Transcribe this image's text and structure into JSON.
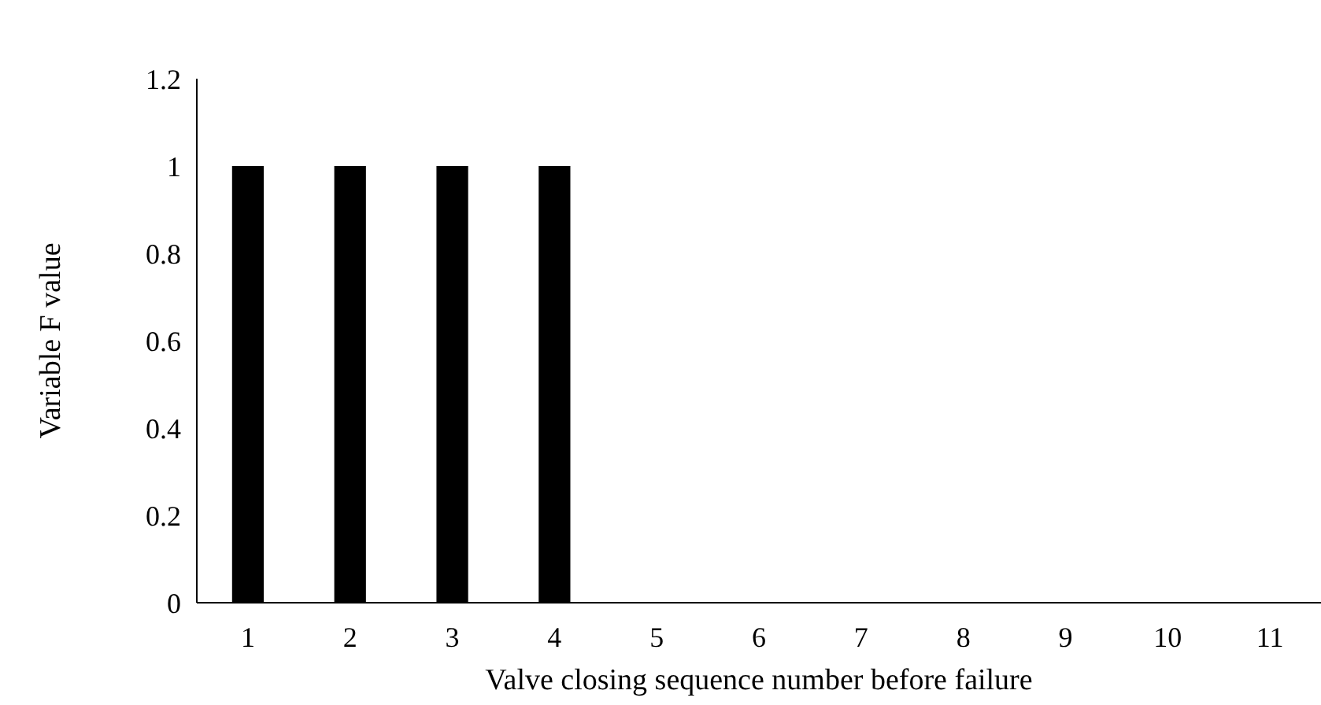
{
  "chart_data": {
    "type": "bar",
    "xlabel": "Valve closing sequence number before failure",
    "ylabel": "Variable F value",
    "categories": [
      "1",
      "2",
      "3",
      "4",
      "5",
      "6",
      "7",
      "8",
      "9",
      "10",
      "11"
    ],
    "values": [
      1,
      1,
      1,
      1,
      0,
      0,
      0,
      0,
      0,
      0,
      0
    ],
    "color": "#000000",
    "ylim": [
      0,
      1.2
    ],
    "yticks": [
      0,
      0.2,
      0.4,
      0.6,
      0.8,
      1,
      1.2
    ],
    "grid": false
  }
}
